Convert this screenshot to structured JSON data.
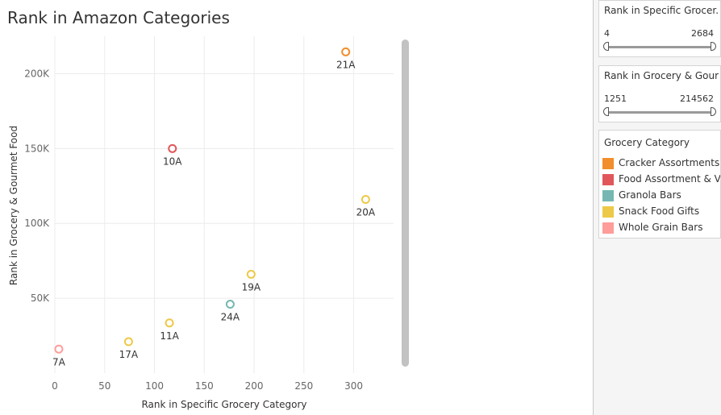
{
  "title": "Rank in Amazon Categories",
  "chart_data": {
    "type": "scatter",
    "title": "Rank in Amazon Categories",
    "xlabel": "Rank in Specific Grocery Category",
    "ylabel": "Rank in Grocery & Gourmet Food",
    "xlim": [
      0,
      340
    ],
    "ylim": [
      0,
      225000
    ],
    "xticks": [
      0,
      50,
      100,
      150,
      200,
      250,
      300
    ],
    "xtick_labels": [
      "0",
      "50",
      "100",
      "150",
      "200",
      "250",
      "300"
    ],
    "yticks": [
      50000,
      100000,
      150000,
      200000
    ],
    "ytick_labels": [
      "50K",
      "100K",
      "150K",
      "200K"
    ],
    "grid": true,
    "legend": "right",
    "points": [
      {
        "label": "21A",
        "x": 292,
        "y": 214562,
        "category": "Cracker Assortments"
      },
      {
        "label": "10A",
        "x": 118,
        "y": 150000,
        "category": "Food Assortment & V.."
      },
      {
        "label": "20A",
        "x": 312,
        "y": 116000,
        "category": "Snack Food Gifts"
      },
      {
        "label": "19A",
        "x": 197,
        "y": 66000,
        "category": "Snack Food Gifts"
      },
      {
        "label": "24A",
        "x": 176,
        "y": 46000,
        "category": "Granola Bars"
      },
      {
        "label": "11A",
        "x": 115,
        "y": 33500,
        "category": "Snack Food Gifts"
      },
      {
        "label": "17A",
        "x": 74,
        "y": 21000,
        "category": "Snack Food Gifts"
      },
      {
        "label": "7A",
        "x": 4,
        "y": 16000,
        "category": "Whole Grain Bars"
      }
    ]
  },
  "filters": [
    {
      "title": "Rank in Specific Grocer...",
      "min": "4",
      "max": "2684"
    },
    {
      "title": "Rank in Grocery & Gour...",
      "min": "1251",
      "max": "214562"
    }
  ],
  "legend": {
    "title": "Grocery Category",
    "items": [
      {
        "label": "Cracker Assortments",
        "color": "#f28e2b"
      },
      {
        "label": "Food Assortment & V..",
        "color": "#e15759"
      },
      {
        "label": "Granola Bars",
        "color": "#76b7b2"
      },
      {
        "label": "Snack Food Gifts",
        "color": "#edc948"
      },
      {
        "label": "Whole Grain Bars",
        "color": "#ff9d9a"
      }
    ]
  },
  "colors": {
    "gridline": "#ececec",
    "axis_text": "#666666",
    "scrollbar": "#c2c2c2"
  }
}
